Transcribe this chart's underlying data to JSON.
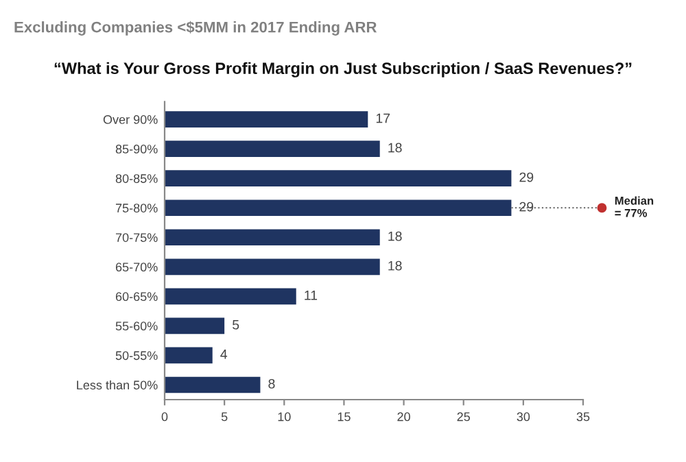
{
  "chart_data": {
    "type": "bar",
    "orientation": "horizontal",
    "title": "Excluding Companies <$5MM in 2017 Ending ARR",
    "subtitle": "“What is Your Gross Profit Margin on Just Subscription / SaaS Revenues?”",
    "categories": [
      "Over 90%",
      "85-90%",
      "80-85%",
      "75-80%",
      "70-75%",
      "65-70%",
      "60-65%",
      "55-60%",
      "50-55%",
      "Less than 50%"
    ],
    "values": [
      17,
      18,
      29,
      29,
      18,
      18,
      11,
      5,
      4,
      8
    ],
    "color": "#1f3461",
    "data_labels": true,
    "xlim": [
      0,
      35
    ],
    "xticks": [
      0,
      5,
      10,
      15,
      20,
      25,
      30,
      35
    ],
    "grid": false,
    "annotations": [
      {
        "text": "Median\n= 77%",
        "x": 29,
        "y": "75-80%"
      }
    ]
  }
}
